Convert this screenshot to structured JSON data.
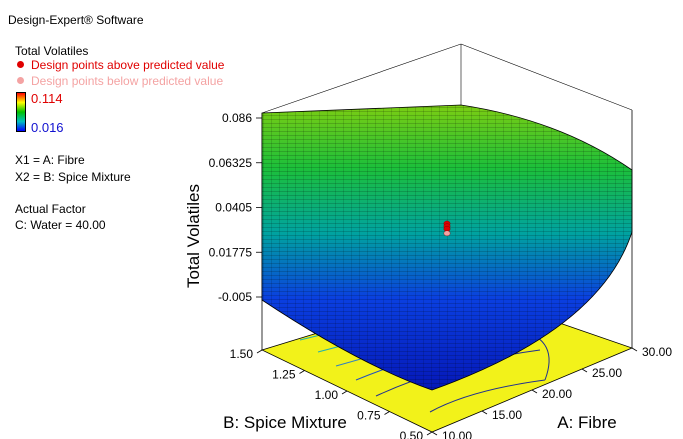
{
  "header": {
    "software": "Design-Expert® Software",
    "response_name": "Total Volatiles",
    "legend_above": "Design points above predicted value",
    "legend_below": "Design points below predicted value",
    "scale_max": "0.114",
    "scale_min": "0.016",
    "x1_label": "X1 = A: Fibre",
    "x2_label": "X2 = B: Spice Mixture",
    "actual_factor_title": "Actual Factor",
    "actual_factor_value": "C: Water = 40.00"
  },
  "colors": {
    "above": "#e00000",
    "below": "#f4a3a3",
    "scale_high": "#ff0000",
    "scale_mid": "#00c000",
    "scale_low": "#0000ff",
    "floor": "#f2f21a"
  },
  "chart_data": {
    "type": "surface3d",
    "zlabel": "Total Volatiles",
    "xlabel": "A: Fibre",
    "ylabel": "B: Spice Mixture",
    "z_ticks": [
      "0.086",
      "0.06325",
      "0.0405",
      "0.01775",
      "-0.005"
    ],
    "x_ticks": [
      "10.00",
      "15.00",
      "20.00",
      "25.00",
      "30.00"
    ],
    "y_ticks": [
      "0.50",
      "0.75",
      "1.00",
      "1.25",
      "1.50"
    ],
    "x_range": [
      10,
      30
    ],
    "y_range": [
      0.5,
      1.5
    ],
    "z_range": [
      -0.005,
      0.086
    ],
    "surface_corners": [
      {
        "x": 10,
        "y": 1.5,
        "z": 0.086
      },
      {
        "x": 30,
        "y": 1.5,
        "z": 0.038
      },
      {
        "x": 30,
        "y": 0.5,
        "z": 0.003
      },
      {
        "x": 10,
        "y": 0.5,
        "z": 0.012
      }
    ],
    "surface_min": {
      "x": 22,
      "y": 0.65,
      "z": 0.0
    },
    "design_points": [
      {
        "x": 20,
        "y": 1.0,
        "z": 0.0285,
        "position": "above"
      },
      {
        "x": 20,
        "y": 1.0,
        "z": 0.0255,
        "position": "above"
      },
      {
        "x": 20,
        "y": 1.0,
        "z": 0.0225,
        "position": "above"
      },
      {
        "x": 20,
        "y": 1.0,
        "z": 0.0175,
        "position": "below"
      }
    ]
  }
}
